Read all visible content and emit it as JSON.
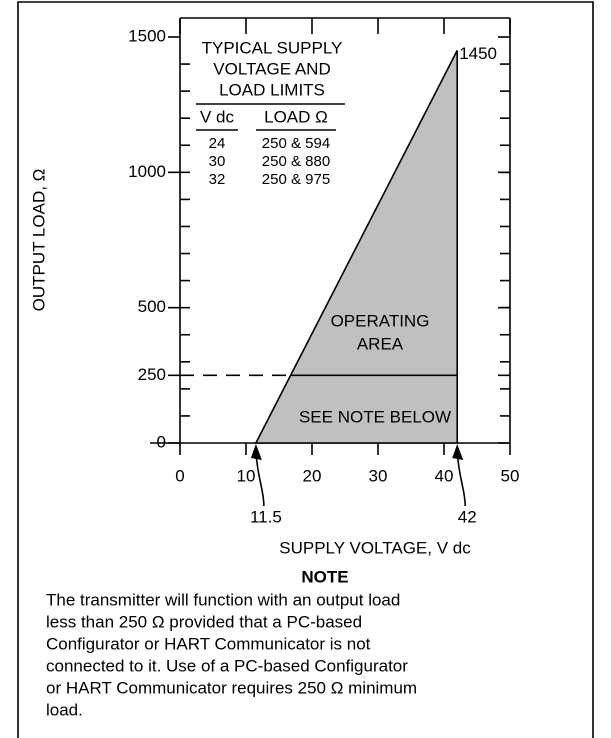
{
  "chart_data": {
    "type": "area",
    "x": [
      11.5,
      42,
      42
    ],
    "values": [
      0,
      1450,
      0
    ],
    "color": "#c0c0c0",
    "xlim": [
      0,
      50
    ],
    "xticks": [
      0,
      10,
      20,
      30,
      40,
      50
    ],
    "ylim": [
      0,
      1500
    ],
    "yticks": [
      0,
      250,
      500,
      1000,
      1500
    ],
    "reference_line": 250,
    "xlabel": "SUPPLY VOLTAGE, V dc",
    "ylabel": "OUTPUT LOAD, Ω",
    "annotations": [
      "OPERATING",
      "AREA",
      "SEE NOTE BELOW"
    ],
    "inset_table": {
      "title": [
        "TYPICAL SUPPLY",
        "VOLTAGE AND",
        "LOAD LIMITS"
      ],
      "columns": [
        "V dc",
        "LOAD Ω"
      ],
      "rows": [
        [
          "24",
          "250 & 594"
        ],
        [
          "30",
          "250 & 880"
        ],
        [
          "32",
          "250 & 975"
        ]
      ]
    }
  },
  "note": {
    "heading": "NOTE",
    "lines": [
      "The transmitter will function with an output load",
      "less than 250 Ω provided that a PC-based",
      "Configurator or HART Communicator is not",
      "connected to it. Use of a PC-based Configurator",
      "or HART Communicator requires 250 Ω minimum",
      "load."
    ]
  }
}
